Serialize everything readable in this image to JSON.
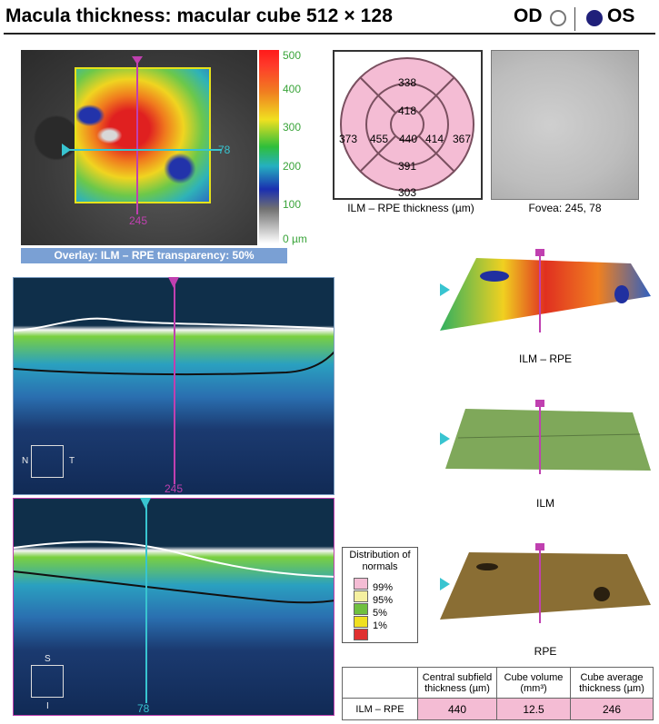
{
  "header": {
    "title": "Macula thickness: macular cube 512 × 128",
    "eye_od_label": "OD",
    "eye_os_label": "OS",
    "selected_eye": "OS"
  },
  "fundus": {
    "marker_vertical": "245",
    "marker_horizontal": "78",
    "scale_labels": [
      "500",
      "400",
      "300",
      "200",
      "100",
      "0 µm"
    ],
    "overlay_label": "Overlay: ILM – RPE transparency: 50%"
  },
  "etdrs": {
    "outer_superior": "338",
    "inner_superior": "418",
    "outer_temporal": "373",
    "inner_temporal": "455",
    "center": "440",
    "inner_nasal": "414",
    "outer_nasal": "367",
    "inner_inferior": "391",
    "outer_inferior": "303",
    "caption": "ILM – RPE thickness (µm)",
    "fill_color": "#f4bcd4"
  },
  "fovea": {
    "caption": "Fovea: 245, 78"
  },
  "bscan_horizontal": {
    "marker_label": "245",
    "orient_left": "N",
    "orient_right": "T"
  },
  "bscan_vertical": {
    "marker_label": "78",
    "orient_top": "S",
    "orient_bottom": "I"
  },
  "surfaces": [
    {
      "label": "ILM – RPE"
    },
    {
      "label": "ILM"
    },
    {
      "label": "RPE"
    }
  ],
  "legend": {
    "title": "Distribution of normals",
    "items": [
      {
        "label": "99%",
        "color": "#f4bcd4"
      },
      {
        "label": "95%",
        "color": "#f5f0a0"
      },
      {
        "label": "5%",
        "color": "#70c040"
      },
      {
        "label": "1%",
        "color": "#f0e020"
      },
      {
        "label": "",
        "color": "#e03030"
      }
    ]
  },
  "results_table": {
    "headers": [
      "Central subfield thickness (µm)",
      "Cube volume (mm³)",
      "Cube average thickness (µm)"
    ],
    "row_label": "ILM – RPE",
    "values": [
      "440",
      "12.5",
      "246"
    ]
  }
}
